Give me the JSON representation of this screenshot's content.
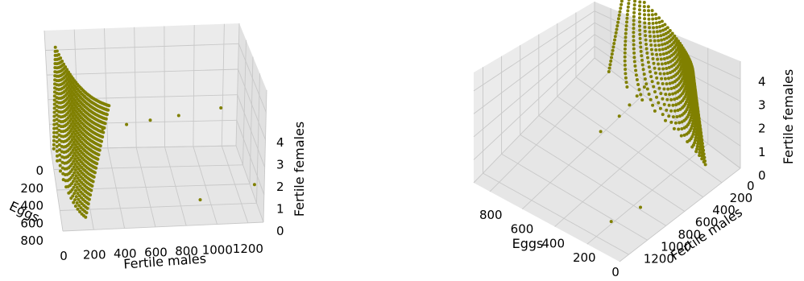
{
  "chart_data": [
    {
      "type": "scatter",
      "view": "left",
      "series_color": "#808000",
      "grid": true,
      "axes": {
        "x": {
          "label": "Fertile males",
          "range": [
            0,
            1300
          ],
          "ticks": [
            "0",
            "200",
            "400",
            "600",
            "800",
            "1000",
            "1200"
          ]
        },
        "y": {
          "label": "Eggs",
          "range": [
            0,
            800
          ],
          "ticks": [
            "0",
            "200",
            "400",
            "600",
            "800"
          ]
        },
        "z": {
          "label": "Fertile females",
          "range": [
            0,
            4.8
          ],
          "ticks": [
            "0",
            "1",
            "2",
            "3",
            "4"
          ]
        }
      }
    },
    {
      "type": "scatter",
      "view": "right",
      "series_color": "#808000",
      "grid": true,
      "axes": {
        "x": {
          "label": "Fertile males",
          "range": [
            0,
            1300
          ],
          "ticks": [
            "0",
            "200",
            "400",
            "600",
            "800",
            "1000",
            "1200"
          ]
        },
        "y": {
          "label": "Eggs",
          "range": [
            0,
            900
          ],
          "ticks": [
            "0",
            "200",
            "400",
            "600",
            "800"
          ]
        },
        "z": {
          "label": "Fertile females",
          "range": [
            0,
            4.8
          ],
          "ticks": [
            "0",
            "1",
            "2",
            "3",
            "4"
          ]
        }
      }
    }
  ]
}
